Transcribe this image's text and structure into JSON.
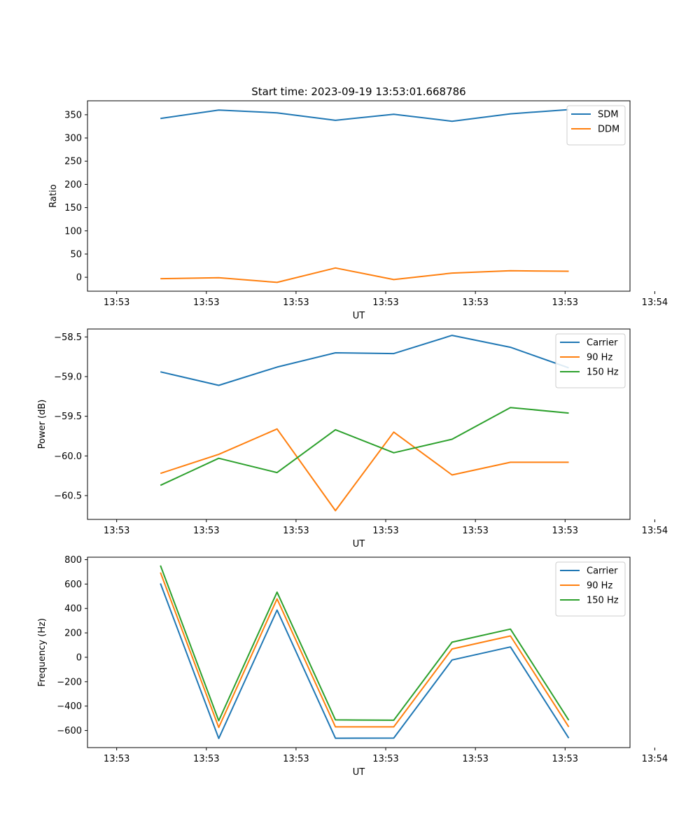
{
  "chart_data": [
    {
      "type": "line",
      "title": "Start time: 2023-09-19 13:53:01.668786",
      "xlabel": "UT",
      "ylabel": "Ratio",
      "xlim": [
        -0.5,
        8.8
      ],
      "ylim": [
        -30,
        380
      ],
      "xticks": [
        0,
        1.5375,
        3.075,
        4.6125,
        6.15,
        7.6875,
        9.225
      ],
      "xtick_labels": [
        "13:53",
        "13:53",
        "13:53",
        "13:53",
        "13:53",
        "13:53",
        "13:54"
      ],
      "yticks": [
        0,
        50,
        100,
        150,
        200,
        250,
        300,
        350
      ],
      "ytick_labels": [
        "0",
        "50",
        "100",
        "150",
        "200",
        "250",
        "300",
        "350"
      ],
      "x": [
        0.75,
        1.75,
        2.75,
        3.75,
        4.75,
        5.75,
        6.75,
        7.75
      ],
      "legend_position": "top-right",
      "series": [
        {
          "name": "SDM",
          "color": "#1f77b4",
          "values": [
            342,
            360,
            354,
            338,
            351,
            336,
            352,
            361
          ]
        },
        {
          "name": "DDM",
          "color": "#ff7f0e",
          "values": [
            -3,
            -1,
            -11,
            20,
            -5,
            9,
            14,
            13
          ]
        }
      ]
    },
    {
      "type": "line",
      "title": "",
      "xlabel": "UT",
      "ylabel": "Power (dB)",
      "xlim": [
        -0.5,
        8.8
      ],
      "ylim": [
        -60.8,
        -58.4
      ],
      "xticks": [
        0,
        1.5375,
        3.075,
        4.6125,
        6.15,
        7.6875,
        9.225
      ],
      "xtick_labels": [
        "13:53",
        "13:53",
        "13:53",
        "13:53",
        "13:53",
        "13:53",
        "13:54"
      ],
      "yticks": [
        -60.5,
        -60.0,
        -59.5,
        -59.0,
        -58.5
      ],
      "ytick_labels": [
        "−60.5",
        "−60.0",
        "−59.5",
        "−59.0",
        "−58.5"
      ],
      "x": [
        0.75,
        1.75,
        2.75,
        3.75,
        4.75,
        5.75,
        6.75,
        7.75
      ],
      "legend_position": "top-right",
      "series": [
        {
          "name": "Carrier",
          "color": "#1f77b4",
          "values": [
            -58.94,
            -59.11,
            -58.88,
            -58.7,
            -58.71,
            -58.48,
            -58.63,
            -58.89
          ]
        },
        {
          "name": "90 Hz",
          "color": "#ff7f0e",
          "values": [
            -60.22,
            -59.98,
            -59.66,
            -60.69,
            -59.7,
            -60.24,
            -60.08,
            -60.08
          ]
        },
        {
          "name": "150 Hz",
          "color": "#2ca02c",
          "values": [
            -60.37,
            -60.03,
            -60.21,
            -59.67,
            -59.96,
            -59.79,
            -59.39,
            -59.46
          ]
        }
      ]
    },
    {
      "type": "line",
      "title": "",
      "xlabel": "UT",
      "ylabel": "Frequency (Hz)",
      "xlim": [
        -0.5,
        8.8
      ],
      "ylim": [
        -740,
        820
      ],
      "xticks": [
        0,
        1.5375,
        3.075,
        4.6125,
        6.15,
        7.6875,
        9.225
      ],
      "xtick_labels": [
        "13:53",
        "13:53",
        "13:53",
        "13:53",
        "13:53",
        "13:53",
        "13:54"
      ],
      "yticks": [
        -600,
        -400,
        -200,
        0,
        200,
        400,
        600,
        800
      ],
      "ytick_labels": [
        "−600",
        "−400",
        "−200",
        "0",
        "200",
        "400",
        "600",
        "800"
      ],
      "x": [
        0.75,
        1.75,
        2.75,
        3.75,
        4.75,
        5.75,
        6.75,
        7.75
      ],
      "legend_position": "top-right",
      "series": [
        {
          "name": "Carrier",
          "color": "#1f77b4",
          "values": [
            605,
            -665,
            387,
            -663,
            -662,
            -22,
            85,
            -662
          ]
        },
        {
          "name": "90 Hz",
          "color": "#ff7f0e",
          "values": [
            695,
            -575,
            478,
            -570,
            -570,
            68,
            175,
            -570
          ]
        },
        {
          "name": "150 Hz",
          "color": "#2ca02c",
          "values": [
            752,
            -520,
            534,
            -513,
            -516,
            124,
            231,
            -515
          ]
        }
      ]
    }
  ]
}
